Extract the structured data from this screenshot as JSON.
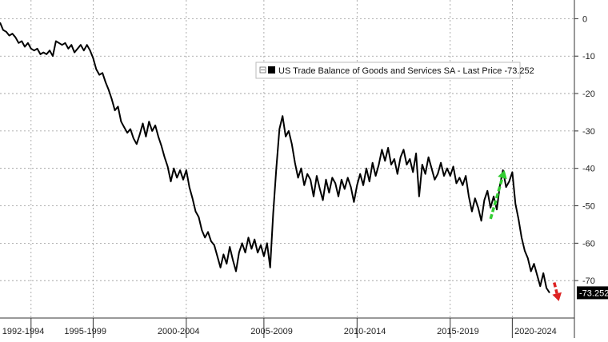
{
  "chart_data": {
    "type": "line",
    "series": [
      {
        "name": "US Trade Balance of Goods and Services SA",
        "color": "#000000",
        "points": [
          [
            1992.0,
            -1.0
          ],
          [
            1992.2,
            -3.0
          ],
          [
            1992.4,
            -3.5
          ],
          [
            1992.6,
            -4.5
          ],
          [
            1992.8,
            -4.0
          ],
          [
            1993.0,
            -5.0
          ],
          [
            1993.2,
            -6.5
          ],
          [
            1993.4,
            -6.0
          ],
          [
            1993.6,
            -7.5
          ],
          [
            1993.8,
            -6.5
          ],
          [
            1994.0,
            -8.0
          ],
          [
            1994.2,
            -8.5
          ],
          [
            1994.4,
            -8.0
          ],
          [
            1994.6,
            -9.5
          ],
          [
            1994.8,
            -9.0
          ],
          [
            1995.0,
            -9.5
          ],
          [
            1995.2,
            -8.5
          ],
          [
            1995.4,
            -10.0
          ],
          [
            1995.6,
            -6.0
          ],
          [
            1995.8,
            -6.5
          ],
          [
            1996.0,
            -7.0
          ],
          [
            1996.2,
            -6.5
          ],
          [
            1996.4,
            -8.0
          ],
          [
            1996.6,
            -7.0
          ],
          [
            1996.8,
            -9.0
          ],
          [
            1997.0,
            -8.0
          ],
          [
            1997.2,
            -7.0
          ],
          [
            1997.4,
            -8.5
          ],
          [
            1997.6,
            -7.0
          ],
          [
            1997.8,
            -8.5
          ],
          [
            1998.0,
            -10.5
          ],
          [
            1998.2,
            -13.5
          ],
          [
            1998.4,
            -15.0
          ],
          [
            1998.6,
            -14.5
          ],
          [
            1998.8,
            -17.0
          ],
          [
            1999.0,
            -19.0
          ],
          [
            1999.2,
            -21.5
          ],
          [
            1999.4,
            -24.5
          ],
          [
            1999.6,
            -23.5
          ],
          [
            1999.8,
            -27.5
          ],
          [
            2000.0,
            -29.0
          ],
          [
            2000.2,
            -30.5
          ],
          [
            2000.4,
            -29.5
          ],
          [
            2000.6,
            -32.0
          ],
          [
            2000.8,
            -33.5
          ],
          [
            2001.0,
            -31.0
          ],
          [
            2001.2,
            -28.0
          ],
          [
            2001.4,
            -31.5
          ],
          [
            2001.6,
            -27.5
          ],
          [
            2001.8,
            -30.0
          ],
          [
            2002.0,
            -28.5
          ],
          [
            2002.2,
            -31.5
          ],
          [
            2002.4,
            -34.0
          ],
          [
            2002.6,
            -37.0
          ],
          [
            2002.8,
            -39.5
          ],
          [
            2003.0,
            -43.5
          ],
          [
            2003.2,
            -40.0
          ],
          [
            2003.4,
            -42.5
          ],
          [
            2003.6,
            -40.5
          ],
          [
            2003.8,
            -43.0
          ],
          [
            2004.0,
            -40.5
          ],
          [
            2004.2,
            -45.0
          ],
          [
            2004.4,
            -48.0
          ],
          [
            2004.6,
            -51.5
          ],
          [
            2004.8,
            -53.0
          ],
          [
            2005.0,
            -56.5
          ],
          [
            2005.2,
            -58.5
          ],
          [
            2005.4,
            -57.0
          ],
          [
            2005.6,
            -59.5
          ],
          [
            2005.8,
            -60.5
          ],
          [
            2006.0,
            -63.5
          ],
          [
            2006.2,
            -66.5
          ],
          [
            2006.4,
            -63.0
          ],
          [
            2006.6,
            -65.5
          ],
          [
            2006.8,
            -61.0
          ],
          [
            2007.0,
            -64.5
          ],
          [
            2007.2,
            -67.5
          ],
          [
            2007.4,
            -62.5
          ],
          [
            2007.6,
            -60.0
          ],
          [
            2007.8,
            -62.5
          ],
          [
            2008.0,
            -58.5
          ],
          [
            2008.2,
            -61.5
          ],
          [
            2008.4,
            -59.0
          ],
          [
            2008.6,
            -62.5
          ],
          [
            2008.8,
            -60.5
          ],
          [
            2009.0,
            -63.5
          ],
          [
            2009.2,
            -60.0
          ],
          [
            2009.4,
            -66.5
          ],
          [
            2009.6,
            -52.0
          ],
          [
            2009.8,
            -40.0
          ],
          [
            2010.0,
            -29.5
          ],
          [
            2010.2,
            -26.0
          ],
          [
            2010.4,
            -31.5
          ],
          [
            2010.6,
            -30.0
          ],
          [
            2010.8,
            -33.5
          ],
          [
            2011.0,
            -38.5
          ],
          [
            2011.2,
            -42.5
          ],
          [
            2011.4,
            -40.0
          ],
          [
            2011.6,
            -44.5
          ],
          [
            2011.8,
            -41.5
          ],
          [
            2012.0,
            -43.0
          ],
          [
            2012.2,
            -47.5
          ],
          [
            2012.4,
            -42.0
          ],
          [
            2012.6,
            -45.5
          ],
          [
            2012.8,
            -48.5
          ],
          [
            2013.0,
            -43.0
          ],
          [
            2013.2,
            -46.5
          ],
          [
            2013.4,
            -42.5
          ],
          [
            2013.6,
            -44.0
          ],
          [
            2013.8,
            -47.5
          ],
          [
            2014.0,
            -43.0
          ],
          [
            2014.2,
            -45.5
          ],
          [
            2014.4,
            -42.5
          ],
          [
            2014.6,
            -45.0
          ],
          [
            2014.8,
            -49.0
          ],
          [
            2015.0,
            -44.5
          ],
          [
            2015.2,
            -41.5
          ],
          [
            2015.4,
            -44.5
          ],
          [
            2015.6,
            -40.0
          ],
          [
            2015.8,
            -43.5
          ],
          [
            2016.0,
            -38.5
          ],
          [
            2016.2,
            -42.0
          ],
          [
            2016.4,
            -39.0
          ],
          [
            2016.6,
            -35.0
          ],
          [
            2016.8,
            -38.0
          ],
          [
            2017.0,
            -34.5
          ],
          [
            2017.2,
            -39.0
          ],
          [
            2017.4,
            -37.5
          ],
          [
            2017.6,
            -41.5
          ],
          [
            2017.8,
            -37.0
          ],
          [
            2018.0,
            -35.0
          ],
          [
            2018.2,
            -39.0
          ],
          [
            2018.4,
            -37.5
          ],
          [
            2018.6,
            -41.0
          ],
          [
            2018.8,
            -36.0
          ],
          [
            2019.0,
            -47.5
          ],
          [
            2019.2,
            -39.0
          ],
          [
            2019.4,
            -41.5
          ],
          [
            2019.6,
            -37.0
          ],
          [
            2019.8,
            -40.0
          ],
          [
            2020.0,
            -43.0
          ],
          [
            2020.2,
            -41.5
          ],
          [
            2020.4,
            -38.5
          ],
          [
            2020.6,
            -42.0
          ],
          [
            2020.8,
            -40.0
          ],
          [
            2021.0,
            -42.0
          ],
          [
            2021.2,
            -39.5
          ],
          [
            2021.4,
            -44.0
          ],
          [
            2021.6,
            -42.5
          ],
          [
            2021.8,
            -44.5
          ],
          [
            2022.0,
            -42.0
          ],
          [
            2022.2,
            -47.5
          ],
          [
            2022.4,
            -51.5
          ],
          [
            2022.6,
            -48.0
          ],
          [
            2022.8,
            -50.5
          ],
          [
            2023.0,
            -54.0
          ],
          [
            2023.2,
            -48.5
          ],
          [
            2023.4,
            -46.0
          ],
          [
            2023.6,
            -50.5
          ],
          [
            2023.8,
            -47.5
          ],
          [
            2024.0,
            -51.0
          ],
          [
            2024.2,
            -44.5
          ],
          [
            2024.4,
            -40.5
          ],
          [
            2024.6,
            -45.0
          ],
          [
            2024.8,
            -43.5
          ],
          [
            2025.0,
            -41.0
          ],
          [
            2025.2,
            -49.5
          ],
          [
            2025.4,
            -53.5
          ],
          [
            2025.6,
            -58.5
          ],
          [
            2025.8,
            -62.0
          ],
          [
            2026.0,
            -64.0
          ],
          [
            2026.2,
            -67.5
          ],
          [
            2026.4,
            -65.5
          ],
          [
            2026.6,
            -68.5
          ],
          [
            2026.8,
            -71.5
          ],
          [
            2027.0,
            -68.0
          ],
          [
            2027.2,
            -72.0
          ],
          [
            2027.4,
            -73.252
          ]
        ]
      }
    ],
    "x_range": [
      1992.0,
      2029.0
    ],
    "ylim": [
      -80,
      5
    ],
    "y_ticks": [
      0,
      -10,
      -20,
      -30,
      -40,
      -50,
      -60,
      -70
    ],
    "y_tick_labels": [
      "0",
      "-10",
      "-20",
      "-30",
      "-40",
      "-50",
      "-60",
      "-70"
    ],
    "x_tick_labels": [
      "1992-1994",
      "1995-1999",
      "2000-2004",
      "2005-2009",
      "2010-2014",
      "2015-2019",
      "2020-2024"
    ],
    "x_tick_centers": [
      1993.5,
      1997.5,
      2003.5,
      2009.5,
      2015.5,
      2021.5,
      2026.5
    ],
    "x_gridlines": [
      1994.0,
      1998.0,
      2004.0,
      2009.0,
      2015.0,
      2021.0,
      2025.0
    ],
    "grid": true,
    "legend": {
      "position": "top-center",
      "text": "US Trade Balance of Goods and Services SA - Last Price -73.252"
    },
    "last_value_label": "-73.252",
    "annotations": [
      {
        "type": "arrow",
        "style": "dashed",
        "color": "#33cc33",
        "direction": "up",
        "from": [
          2023.6,
          -53.5
        ],
        "to": [
          2024.5,
          -40.5
        ]
      },
      {
        "type": "arrow",
        "style": "dashed",
        "color": "#dd2222",
        "direction": "down",
        "from": [
          2027.7,
          -70.5
        ],
        "to": [
          2028.0,
          -75.5
        ]
      }
    ]
  }
}
